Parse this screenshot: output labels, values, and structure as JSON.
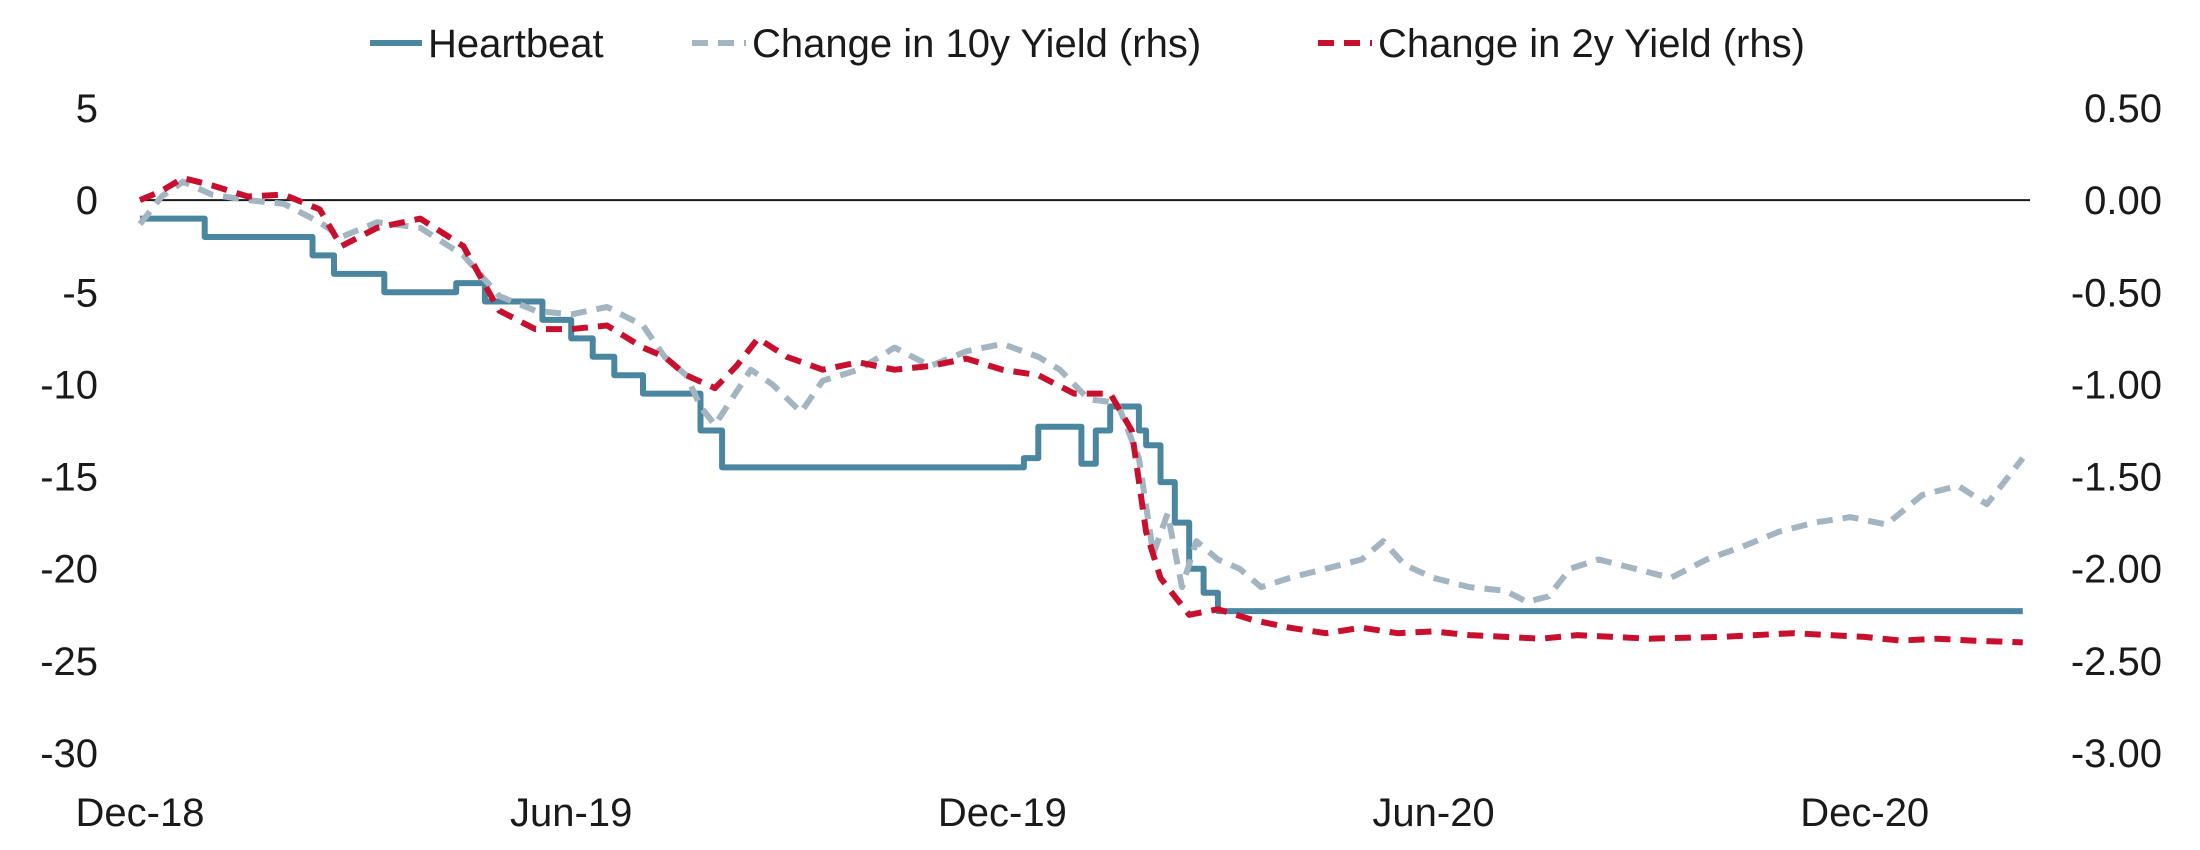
{
  "chart_data": {
    "type": "line",
    "title": "",
    "xlabel": "",
    "ylabel": "",
    "y2label": "",
    "grid": false,
    "legend_position": "top-center",
    "x_ticks": [
      "Dec-18",
      "Jun-19",
      "Dec-19",
      "Jun-20",
      "Dec-20"
    ],
    "x_tick_values": [
      0,
      6,
      12,
      18,
      24
    ],
    "xlim": [
      0,
      26.3
    ],
    "ylim": [
      -30,
      5
    ],
    "y_ticks": [
      "5",
      "0",
      "-5",
      "-10",
      "-15",
      "-20",
      "-25",
      "-30"
    ],
    "y_tick_values": [
      5,
      0,
      -5,
      -10,
      -15,
      -20,
      -25,
      -30
    ],
    "y2lim": [
      -3.0,
      0.5
    ],
    "y2_ticks": [
      "0.50",
      "0.00",
      "-0.50",
      "-1.00",
      "-1.50",
      "-2.00",
      "-2.50",
      "-3.00"
    ],
    "y2_tick_values": [
      0.5,
      0.0,
      -0.5,
      -1.0,
      -1.5,
      -2.0,
      -2.5,
      -3.0
    ],
    "zero_line": 0,
    "series": [
      {
        "name": "Heartbeat",
        "axis": "left",
        "style": "solid-step",
        "color": "#4a86a0",
        "points": [
          [
            0,
            -1.0
          ],
          [
            0.9,
            -1.0
          ],
          [
            0.9,
            -2.0
          ],
          [
            2.4,
            -2.0
          ],
          [
            2.4,
            -3.0
          ],
          [
            2.7,
            -3.0
          ],
          [
            2.7,
            -4.0
          ],
          [
            3.4,
            -4.0
          ],
          [
            3.4,
            -5.0
          ],
          [
            4.4,
            -5.0
          ],
          [
            4.4,
            -4.5
          ],
          [
            4.8,
            -4.5
          ],
          [
            4.8,
            -5.5
          ],
          [
            5.6,
            -5.5
          ],
          [
            5.6,
            -6.5
          ],
          [
            6.0,
            -6.5
          ],
          [
            6.0,
            -7.5
          ],
          [
            6.3,
            -7.5
          ],
          [
            6.3,
            -8.5
          ],
          [
            6.6,
            -8.5
          ],
          [
            6.6,
            -9.5
          ],
          [
            7.0,
            -9.5
          ],
          [
            7.0,
            -10.5
          ],
          [
            7.8,
            -10.5
          ],
          [
            7.8,
            -12.5
          ],
          [
            8.1,
            -12.5
          ],
          [
            8.1,
            -14.5
          ],
          [
            12.3,
            -14.5
          ],
          [
            12.3,
            -14.0
          ],
          [
            12.5,
            -14.0
          ],
          [
            12.5,
            -12.3
          ],
          [
            13.1,
            -12.3
          ],
          [
            13.1,
            -14.3
          ],
          [
            13.3,
            -14.3
          ],
          [
            13.3,
            -12.5
          ],
          [
            13.5,
            -12.5
          ],
          [
            13.5,
            -11.2
          ],
          [
            13.9,
            -11.2
          ],
          [
            13.9,
            -12.5
          ],
          [
            14.0,
            -12.5
          ],
          [
            14.0,
            -13.3
          ],
          [
            14.2,
            -13.3
          ],
          [
            14.2,
            -15.3
          ],
          [
            14.4,
            -15.3
          ],
          [
            14.4,
            -17.5
          ],
          [
            14.6,
            -17.5
          ],
          [
            14.6,
            -20.0
          ],
          [
            14.8,
            -20.0
          ],
          [
            14.8,
            -21.3
          ],
          [
            15.0,
            -21.3
          ],
          [
            15.0,
            -22.3
          ],
          [
            26.2,
            -22.3
          ]
        ]
      },
      {
        "name": "Change in 10y Yield (rhs)",
        "axis": "right",
        "style": "dashed",
        "color": "#a4b5c2",
        "points": [
          [
            0,
            -0.13
          ],
          [
            0.3,
            0.02
          ],
          [
            0.6,
            0.1
          ],
          [
            1.0,
            0.03
          ],
          [
            1.5,
            0.0
          ],
          [
            2.0,
            -0.02
          ],
          [
            2.5,
            -0.12
          ],
          [
            2.8,
            -0.2
          ],
          [
            3.3,
            -0.12
          ],
          [
            3.9,
            -0.15
          ],
          [
            4.5,
            -0.3
          ],
          [
            5.0,
            -0.52
          ],
          [
            5.5,
            -0.6
          ],
          [
            6.0,
            -0.62
          ],
          [
            6.5,
            -0.58
          ],
          [
            7.0,
            -0.68
          ],
          [
            7.3,
            -0.85
          ],
          [
            7.6,
            -0.95
          ],
          [
            7.8,
            -1.12
          ],
          [
            8.0,
            -1.22
          ],
          [
            8.2,
            -1.1
          ],
          [
            8.5,
            -0.92
          ],
          [
            8.8,
            -1.0
          ],
          [
            9.2,
            -1.15
          ],
          [
            9.5,
            -0.98
          ],
          [
            10.0,
            -0.92
          ],
          [
            10.5,
            -0.8
          ],
          [
            11.0,
            -0.9
          ],
          [
            11.5,
            -0.82
          ],
          [
            12.0,
            -0.78
          ],
          [
            12.5,
            -0.85
          ],
          [
            12.8,
            -0.92
          ],
          [
            13.2,
            -1.08
          ],
          [
            13.6,
            -1.1
          ],
          [
            13.9,
            -1.4
          ],
          [
            14.1,
            -1.92
          ],
          [
            14.3,
            -1.7
          ],
          [
            14.5,
            -2.1
          ],
          [
            14.7,
            -1.85
          ],
          [
            15.0,
            -1.95
          ],
          [
            15.3,
            -2.0
          ],
          [
            15.6,
            -2.1
          ],
          [
            16.0,
            -2.05
          ],
          [
            16.5,
            -2.0
          ],
          [
            17.0,
            -1.95
          ],
          [
            17.3,
            -1.85
          ],
          [
            17.6,
            -1.98
          ],
          [
            18.0,
            -2.05
          ],
          [
            18.5,
            -2.1
          ],
          [
            19.0,
            -2.12
          ],
          [
            19.3,
            -2.18
          ],
          [
            19.6,
            -2.15
          ],
          [
            19.9,
            -2.0
          ],
          [
            20.3,
            -1.95
          ],
          [
            20.8,
            -2.0
          ],
          [
            21.3,
            -2.05
          ],
          [
            21.8,
            -1.95
          ],
          [
            22.3,
            -1.88
          ],
          [
            22.8,
            -1.8
          ],
          [
            23.3,
            -1.75
          ],
          [
            23.8,
            -1.72
          ],
          [
            24.3,
            -1.76
          ],
          [
            24.8,
            -1.6
          ],
          [
            25.3,
            -1.55
          ],
          [
            25.7,
            -1.65
          ],
          [
            26.0,
            -1.5
          ],
          [
            26.2,
            -1.4
          ]
        ]
      },
      {
        "name": "Change in 2y Yield (rhs)",
        "axis": "right",
        "style": "dashed",
        "color": "#c8102e",
        "points": [
          [
            0,
            0.0
          ],
          [
            0.3,
            0.05
          ],
          [
            0.6,
            0.12
          ],
          [
            1.0,
            0.08
          ],
          [
            1.5,
            0.02
          ],
          [
            2.0,
            0.03
          ],
          [
            2.5,
            -0.05
          ],
          [
            2.8,
            -0.25
          ],
          [
            3.3,
            -0.15
          ],
          [
            3.9,
            -0.1
          ],
          [
            4.5,
            -0.25
          ],
          [
            5.0,
            -0.6
          ],
          [
            5.5,
            -0.7
          ],
          [
            6.0,
            -0.7
          ],
          [
            6.5,
            -0.68
          ],
          [
            7.0,
            -0.8
          ],
          [
            7.3,
            -0.85
          ],
          [
            7.6,
            -0.95
          ],
          [
            8.0,
            -1.02
          ],
          [
            8.3,
            -0.9
          ],
          [
            8.6,
            -0.75
          ],
          [
            9.0,
            -0.85
          ],
          [
            9.5,
            -0.92
          ],
          [
            10.0,
            -0.88
          ],
          [
            10.5,
            -0.92
          ],
          [
            11.0,
            -0.9
          ],
          [
            11.5,
            -0.86
          ],
          [
            12.0,
            -0.92
          ],
          [
            12.5,
            -0.95
          ],
          [
            13.0,
            -1.05
          ],
          [
            13.5,
            -1.05
          ],
          [
            13.8,
            -1.25
          ],
          [
            14.0,
            -1.8
          ],
          [
            14.2,
            -2.05
          ],
          [
            14.4,
            -2.15
          ],
          [
            14.6,
            -2.25
          ],
          [
            15.0,
            -2.22
          ],
          [
            15.5,
            -2.28
          ],
          [
            16.0,
            -2.32
          ],
          [
            16.5,
            -2.35
          ],
          [
            17.0,
            -2.32
          ],
          [
            17.5,
            -2.35
          ],
          [
            18.0,
            -2.34
          ],
          [
            18.5,
            -2.36
          ],
          [
            19.0,
            -2.37
          ],
          [
            19.5,
            -2.38
          ],
          [
            20.0,
            -2.36
          ],
          [
            21.0,
            -2.38
          ],
          [
            22.0,
            -2.37
          ],
          [
            23.0,
            -2.35
          ],
          [
            24.0,
            -2.37
          ],
          [
            24.5,
            -2.39
          ],
          [
            25.0,
            -2.38
          ],
          [
            25.5,
            -2.39
          ],
          [
            26.2,
            -2.4
          ]
        ]
      }
    ]
  }
}
